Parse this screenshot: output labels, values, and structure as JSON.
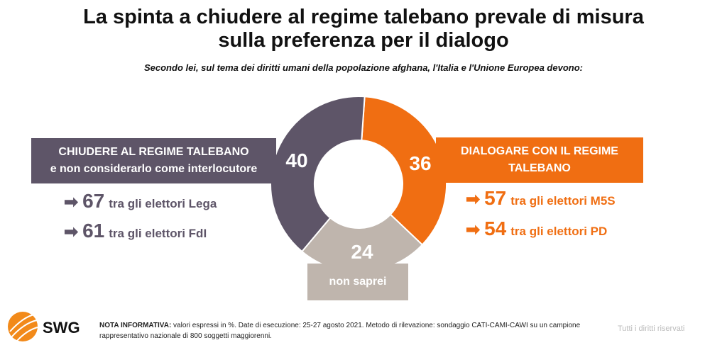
{
  "title_line1": "La spinta a chiudere al regime talebano prevale di misura",
  "title_line2": "sulla preferenza per il dialogo",
  "subtitle": "Secondo lei, sul tema dei diritti umani della popolazione afghana, l'Italia e l'Unione Europea devono:",
  "chart_data": {
    "type": "pie",
    "variant": "donut",
    "slices": [
      {
        "label": "DIALOGARE CON IL REGIME TALEBANO",
        "value": 36,
        "color": "#f06e12"
      },
      {
        "label": "non saprei",
        "value": 24,
        "color": "#bfb5ad"
      },
      {
        "label": "CHIUDERE AL REGIME TALEBANO e non considerarlo come interlocutore",
        "value": 40,
        "color": "#5e5568"
      }
    ]
  },
  "left_label": {
    "line1": "CHIUDERE AL REGIME TALEBANO",
    "line2": "e non considerarlo come interlocutore"
  },
  "right_label": {
    "line1": "DIALOGARE CON IL REGIME",
    "line2": "TALEBANO"
  },
  "center_label": "non saprei",
  "left_stats": [
    {
      "value": "67",
      "text": "tra gli elettori Lega"
    },
    {
      "value": "61",
      "text": "tra gli elettori FdI"
    }
  ],
  "right_stats": [
    {
      "value": "57",
      "text": "tra gli elettori M5S"
    },
    {
      "value": "54",
      "text": "tra gli elettori PD"
    }
  ],
  "arrow": "➡",
  "note_bold": "NOTA INFORMATIVA:",
  "note_text": " valori espressi in %. Date di esecuzione: 25-27 agosto 2021. Metodo di rilevazione: sondaggio CATI-CAMI-CAWI su un campione rappresentativo nazionale di 800 soggetti maggiorenni.",
  "brand": "SWG",
  "rights": "Tutti i diritti riservati"
}
